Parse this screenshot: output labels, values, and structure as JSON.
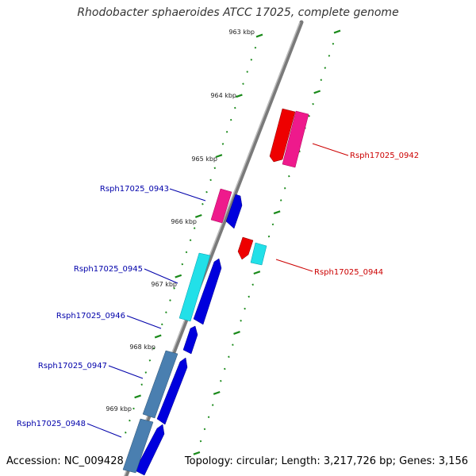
{
  "title": "Rhodobacter sphaeroides ATCC 17025, complete genome",
  "footer": {
    "accession": "Accession: NC_009428",
    "summary": "Topology: circular; Length: 3,217,726 bp; Genes: 3,156"
  },
  "colors": {
    "background": "#ffffff",
    "backbone": "#888888",
    "tick": "#1a8a1a",
    "forward_label": "#0000aa",
    "reverse_label": "#cc0000",
    "gene_blue": "#0000dd",
    "gene_red": "#ee0000",
    "gene_magenta": "#ee1a8c",
    "gene_cyan": "#22e0e8",
    "gene_steelblue": "#4a7fb0"
  },
  "scale_labels": [
    "963 kbp",
    "964 kbp",
    "965 kbp",
    "966 kbp",
    "967 kbp",
    "968 kbp",
    "969 kbp"
  ],
  "gene_labels": {
    "forward": [
      "Rsph17025_0943",
      "Rsph17025_0945",
      "Rsph17025_0946",
      "Rsph17025_0947",
      "Rsph17025_0948"
    ],
    "reverse": [
      "Rsph17025_0942",
      "Rsph17025_0944"
    ]
  }
}
